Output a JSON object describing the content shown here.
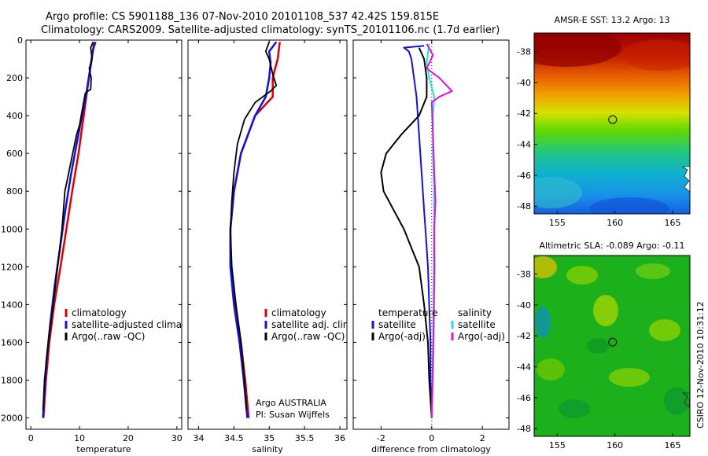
{
  "header": {
    "line1": "Argo profile: CS 5901188_136 07-Nov-2010 20101108_537 42.42S 159.815E",
    "line2": "Climatology: CARS2009. Satellite-adjusted climatology: synTS_20101106.nc (1.7d earlier)"
  },
  "credit": {
    "institution": "Argo AUSTRALIA",
    "pi": "PI: Susan Wijffels",
    "timestamp": "CSIRO 12-Nov-2010 10:31:12"
  },
  "colors": {
    "red": "#dd0000",
    "blue": "#1111dd",
    "black": "#000000",
    "cyan": "#22e0e0",
    "magenta": "#e010e0"
  },
  "chart_data": [
    {
      "type": "line",
      "id": "temperature",
      "xlabel": "temperature",
      "ylabel": "",
      "xlim": [
        -1,
        31
      ],
      "ylim": [
        2060,
        0
      ],
      "xticks": [
        0,
        10,
        20,
        30
      ],
      "yticks": [
        0,
        200,
        400,
        600,
        800,
        1000,
        1200,
        1400,
        1600,
        1800,
        2000
      ],
      "legend_position": "lower-right",
      "legend": [
        {
          "label": "climatology",
          "color": "red"
        },
        {
          "label": "satellite-adjusted climatology",
          "color": "blue"
        },
        {
          "label": "Argo(..raw -QC)",
          "color": "black"
        }
      ],
      "series": [
        {
          "name": "climatology",
          "color": "red",
          "width": 2.5,
          "points": [
            [
              13.0,
              10
            ],
            [
              12.8,
              50
            ],
            [
              12.2,
              150
            ],
            [
              11.4,
              300
            ],
            [
              10.6,
              450
            ],
            [
              9.8,
              600
            ],
            [
              8.5,
              800
            ],
            [
              7.3,
              1000
            ],
            [
              6.1,
              1200
            ],
            [
              4.8,
              1400
            ],
            [
              3.8,
              1600
            ],
            [
              3.1,
              1800
            ],
            [
              2.7,
              1960
            ],
            [
              2.6,
              2000
            ]
          ]
        },
        {
          "name": "satellite-adjusted climatology",
          "color": "blue",
          "width": 2.5,
          "points": [
            [
              13.3,
              10
            ],
            [
              12.9,
              40
            ],
            [
              12.6,
              80
            ],
            [
              12.4,
              120
            ],
            [
              11.9,
              200
            ],
            [
              11.3,
              300
            ],
            [
              10.5,
              400
            ],
            [
              9.4,
              550
            ],
            [
              8.2,
              720
            ],
            [
              7.1,
              900
            ],
            [
              6.0,
              1100
            ],
            [
              4.9,
              1300
            ],
            [
              4.0,
              1500
            ],
            [
              3.2,
              1700
            ],
            [
              2.7,
              1900
            ],
            [
              2.5,
              2000
            ]
          ]
        },
        {
          "name": "Argo(..raw -QC)",
          "color": "black",
          "width": 1.8,
          "points": [
            [
              12.8,
              10
            ],
            [
              12.3,
              40
            ],
            [
              12.6,
              100
            ],
            [
              12.0,
              150
            ],
            [
              12.4,
              200
            ],
            [
              12.3,
              260
            ],
            [
              11.2,
              280
            ],
            [
              10.7,
              350
            ],
            [
              10.0,
              450
            ],
            [
              9.4,
              500
            ],
            [
              8.6,
              600
            ],
            [
              7.8,
              700
            ],
            [
              7.0,
              800
            ],
            [
              6.4,
              1000
            ],
            [
              5.5,
              1200
            ],
            [
              4.6,
              1400
            ],
            [
              3.6,
              1600
            ],
            [
              2.8,
              1800
            ],
            [
              2.5,
              1960
            ]
          ]
        }
      ]
    },
    {
      "type": "line",
      "id": "salinity",
      "xlabel": "salinity",
      "ylabel": "",
      "xlim": [
        33.85,
        36.1
      ],
      "ylim": [
        2060,
        0
      ],
      "xticks": [
        34,
        34.5,
        35,
        35.5,
        36
      ],
      "yticks": [
        0,
        200,
        400,
        600,
        800,
        1000,
        1200,
        1400,
        1600,
        1800,
        2000
      ],
      "legend_position": "lower-right",
      "legend": [
        {
          "label": "climatology",
          "color": "red"
        },
        {
          "label": "satellite adj. clim.",
          "color": "blue"
        },
        {
          "label": "Argo(..raw -QC)",
          "color": "black"
        }
      ],
      "series": [
        {
          "name": "climatology",
          "color": "red",
          "width": 2.5,
          "points": [
            [
              35.15,
              10
            ],
            [
              35.12,
              100
            ],
            [
              35.05,
              200
            ],
            [
              35.05,
              300
            ],
            [
              34.8,
              400
            ],
            [
              34.6,
              600
            ],
            [
              34.5,
              800
            ],
            [
              34.45,
              1000
            ],
            [
              34.45,
              1200
            ],
            [
              34.52,
              1400
            ],
            [
              34.6,
              1600
            ],
            [
              34.66,
              1800
            ],
            [
              34.7,
              1960
            ],
            [
              34.71,
              2000
            ]
          ]
        },
        {
          "name": "satellite adj. clim.",
          "color": "blue",
          "width": 2.5,
          "points": [
            [
              35.1,
              10
            ],
            [
              35.0,
              60
            ],
            [
              35.02,
              120
            ],
            [
              35.0,
              200
            ],
            [
              34.95,
              300
            ],
            [
              34.8,
              400
            ],
            [
              34.6,
              600
            ],
            [
              34.5,
              800
            ],
            [
              34.45,
              1000
            ],
            [
              34.45,
              1200
            ],
            [
              34.5,
              1400
            ],
            [
              34.58,
              1600
            ],
            [
              34.64,
              1800
            ],
            [
              34.68,
              1960
            ],
            [
              34.69,
              2000
            ]
          ]
        },
        {
          "name": "Argo(..raw -QC)",
          "color": "black",
          "width": 1.8,
          "points": [
            [
              35.0,
              10
            ],
            [
              34.95,
              60
            ],
            [
              35.0,
              100
            ],
            [
              35.05,
              180
            ],
            [
              35.1,
              240
            ],
            [
              35.02,
              270
            ],
            [
              34.8,
              330
            ],
            [
              34.65,
              420
            ],
            [
              34.55,
              550
            ],
            [
              34.5,
              700
            ],
            [
              34.47,
              850
            ],
            [
              34.45,
              1000
            ],
            [
              34.47,
              1200
            ],
            [
              34.53,
              1400
            ],
            [
              34.6,
              1600
            ],
            [
              34.65,
              1800
            ],
            [
              34.68,
              1960
            ]
          ]
        }
      ]
    },
    {
      "type": "line",
      "id": "difference",
      "xlabel": "difference from climatology",
      "ylabel": "",
      "xlim": [
        -3.1,
        3.05
      ],
      "ylim": [
        2060,
        0
      ],
      "xticks": [
        -2,
        0,
        2
      ],
      "yticks": [
        0,
        200,
        400,
        600,
        800,
        1000,
        1200,
        1400,
        1600,
        1800,
        2000
      ],
      "zero_line": true,
      "legend_position": "lower-center",
      "legend": [
        {
          "label": "temperature",
          "color": ""
        },
        {
          "label": "satellite",
          "color": "blue"
        },
        {
          "label": "Argo(-adj)",
          "color": "black"
        },
        {
          "label": "salinity",
          "color": ""
        },
        {
          "label": "satellite",
          "color": "cyan"
        },
        {
          "label": "Argo(-adj)",
          "color": "magenta"
        }
      ],
      "series": [
        {
          "name": "temperature satellite",
          "color": "blue",
          "width": 2,
          "points": [
            [
              -0.3,
              30
            ],
            [
              -1.1,
              40
            ],
            [
              -0.9,
              60
            ],
            [
              -0.8,
              100
            ],
            [
              -0.6,
              300
            ],
            [
              -0.5,
              500
            ],
            [
              -0.4,
              700
            ],
            [
              -0.3,
              900
            ],
            [
              -0.25,
              1000
            ],
            [
              -0.15,
              1200
            ],
            [
              -0.1,
              1400
            ],
            [
              -0.05,
              1600
            ],
            [
              -0.05,
              1800
            ],
            [
              0,
              2000
            ]
          ]
        },
        {
          "name": "temperature Argo(-adj)",
          "color": "black",
          "width": 2,
          "points": [
            [
              -0.5,
              40
            ],
            [
              -0.3,
              100
            ],
            [
              -0.2,
              200
            ],
            [
              -0.2,
              300
            ],
            [
              -0.5,
              400
            ],
            [
              -1.2,
              500
            ],
            [
              -1.8,
              600
            ],
            [
              -2.0,
              700
            ],
            [
              -1.9,
              800
            ],
            [
              -1.5,
              900
            ],
            [
              -1.1,
              1000
            ],
            [
              -0.8,
              1100
            ],
            [
              -0.5,
              1200
            ],
            [
              -0.3,
              1400
            ],
            [
              -0.15,
              1600
            ],
            [
              -0.1,
              1800
            ],
            [
              0,
              2000
            ]
          ]
        },
        {
          "name": "salinity satellite",
          "color": "cyan",
          "width": 2,
          "points": [
            [
              -0.1,
              20
            ],
            [
              -0.2,
              120
            ],
            [
              -0.1,
              200
            ],
            [
              0.1,
              300
            ],
            [
              0.05,
              400
            ],
            [
              0.05,
              600
            ],
            [
              0.1,
              800
            ],
            [
              0.1,
              1000
            ],
            [
              0.12,
              1200
            ],
            [
              0.1,
              1400
            ],
            [
              0.08,
              1600
            ],
            [
              0.05,
              1800
            ],
            [
              0,
              2000
            ]
          ]
        },
        {
          "name": "salinity Argo(-adj)",
          "color": "magenta",
          "width": 2,
          "points": [
            [
              -0.2,
              20
            ],
            [
              0.05,
              80
            ],
            [
              -0.2,
              150
            ],
            [
              0.3,
              200
            ],
            [
              0.8,
              270
            ],
            [
              0.3,
              300
            ],
            [
              0.0,
              330
            ],
            [
              0.05,
              500
            ],
            [
              0.1,
              700
            ],
            [
              0.15,
              850
            ],
            [
              0.1,
              1000
            ],
            [
              0.1,
              1200
            ],
            [
              0.08,
              1400
            ],
            [
              0.06,
              1600
            ],
            [
              0.03,
              1800
            ],
            [
              0,
              2000
            ]
          ]
        }
      ]
    },
    {
      "type": "heatmap",
      "id": "sst_map",
      "title": "AMSR-E SST: 13.2 Argo: 13",
      "xlim": [
        153,
        166.5
      ],
      "ylim": [
        -48.5,
        -36.8
      ],
      "xticks": [
        155,
        160,
        165
      ],
      "yticks": [
        -38,
        -40,
        -42,
        -44,
        -46,
        -48
      ],
      "marker": [
        159.8,
        -42.4
      ]
    },
    {
      "type": "heatmap",
      "id": "sla_map",
      "title": "Altimetric SLA: -0.089 Argo: -0.11",
      "xlim": [
        153,
        166.5
      ],
      "ylim": [
        -48.5,
        -36.8
      ],
      "xticks": [
        155,
        160,
        165
      ],
      "yticks": [
        -38,
        -40,
        -42,
        -44,
        -46,
        -48
      ],
      "marker": [
        159.8,
        -42.4
      ]
    }
  ]
}
